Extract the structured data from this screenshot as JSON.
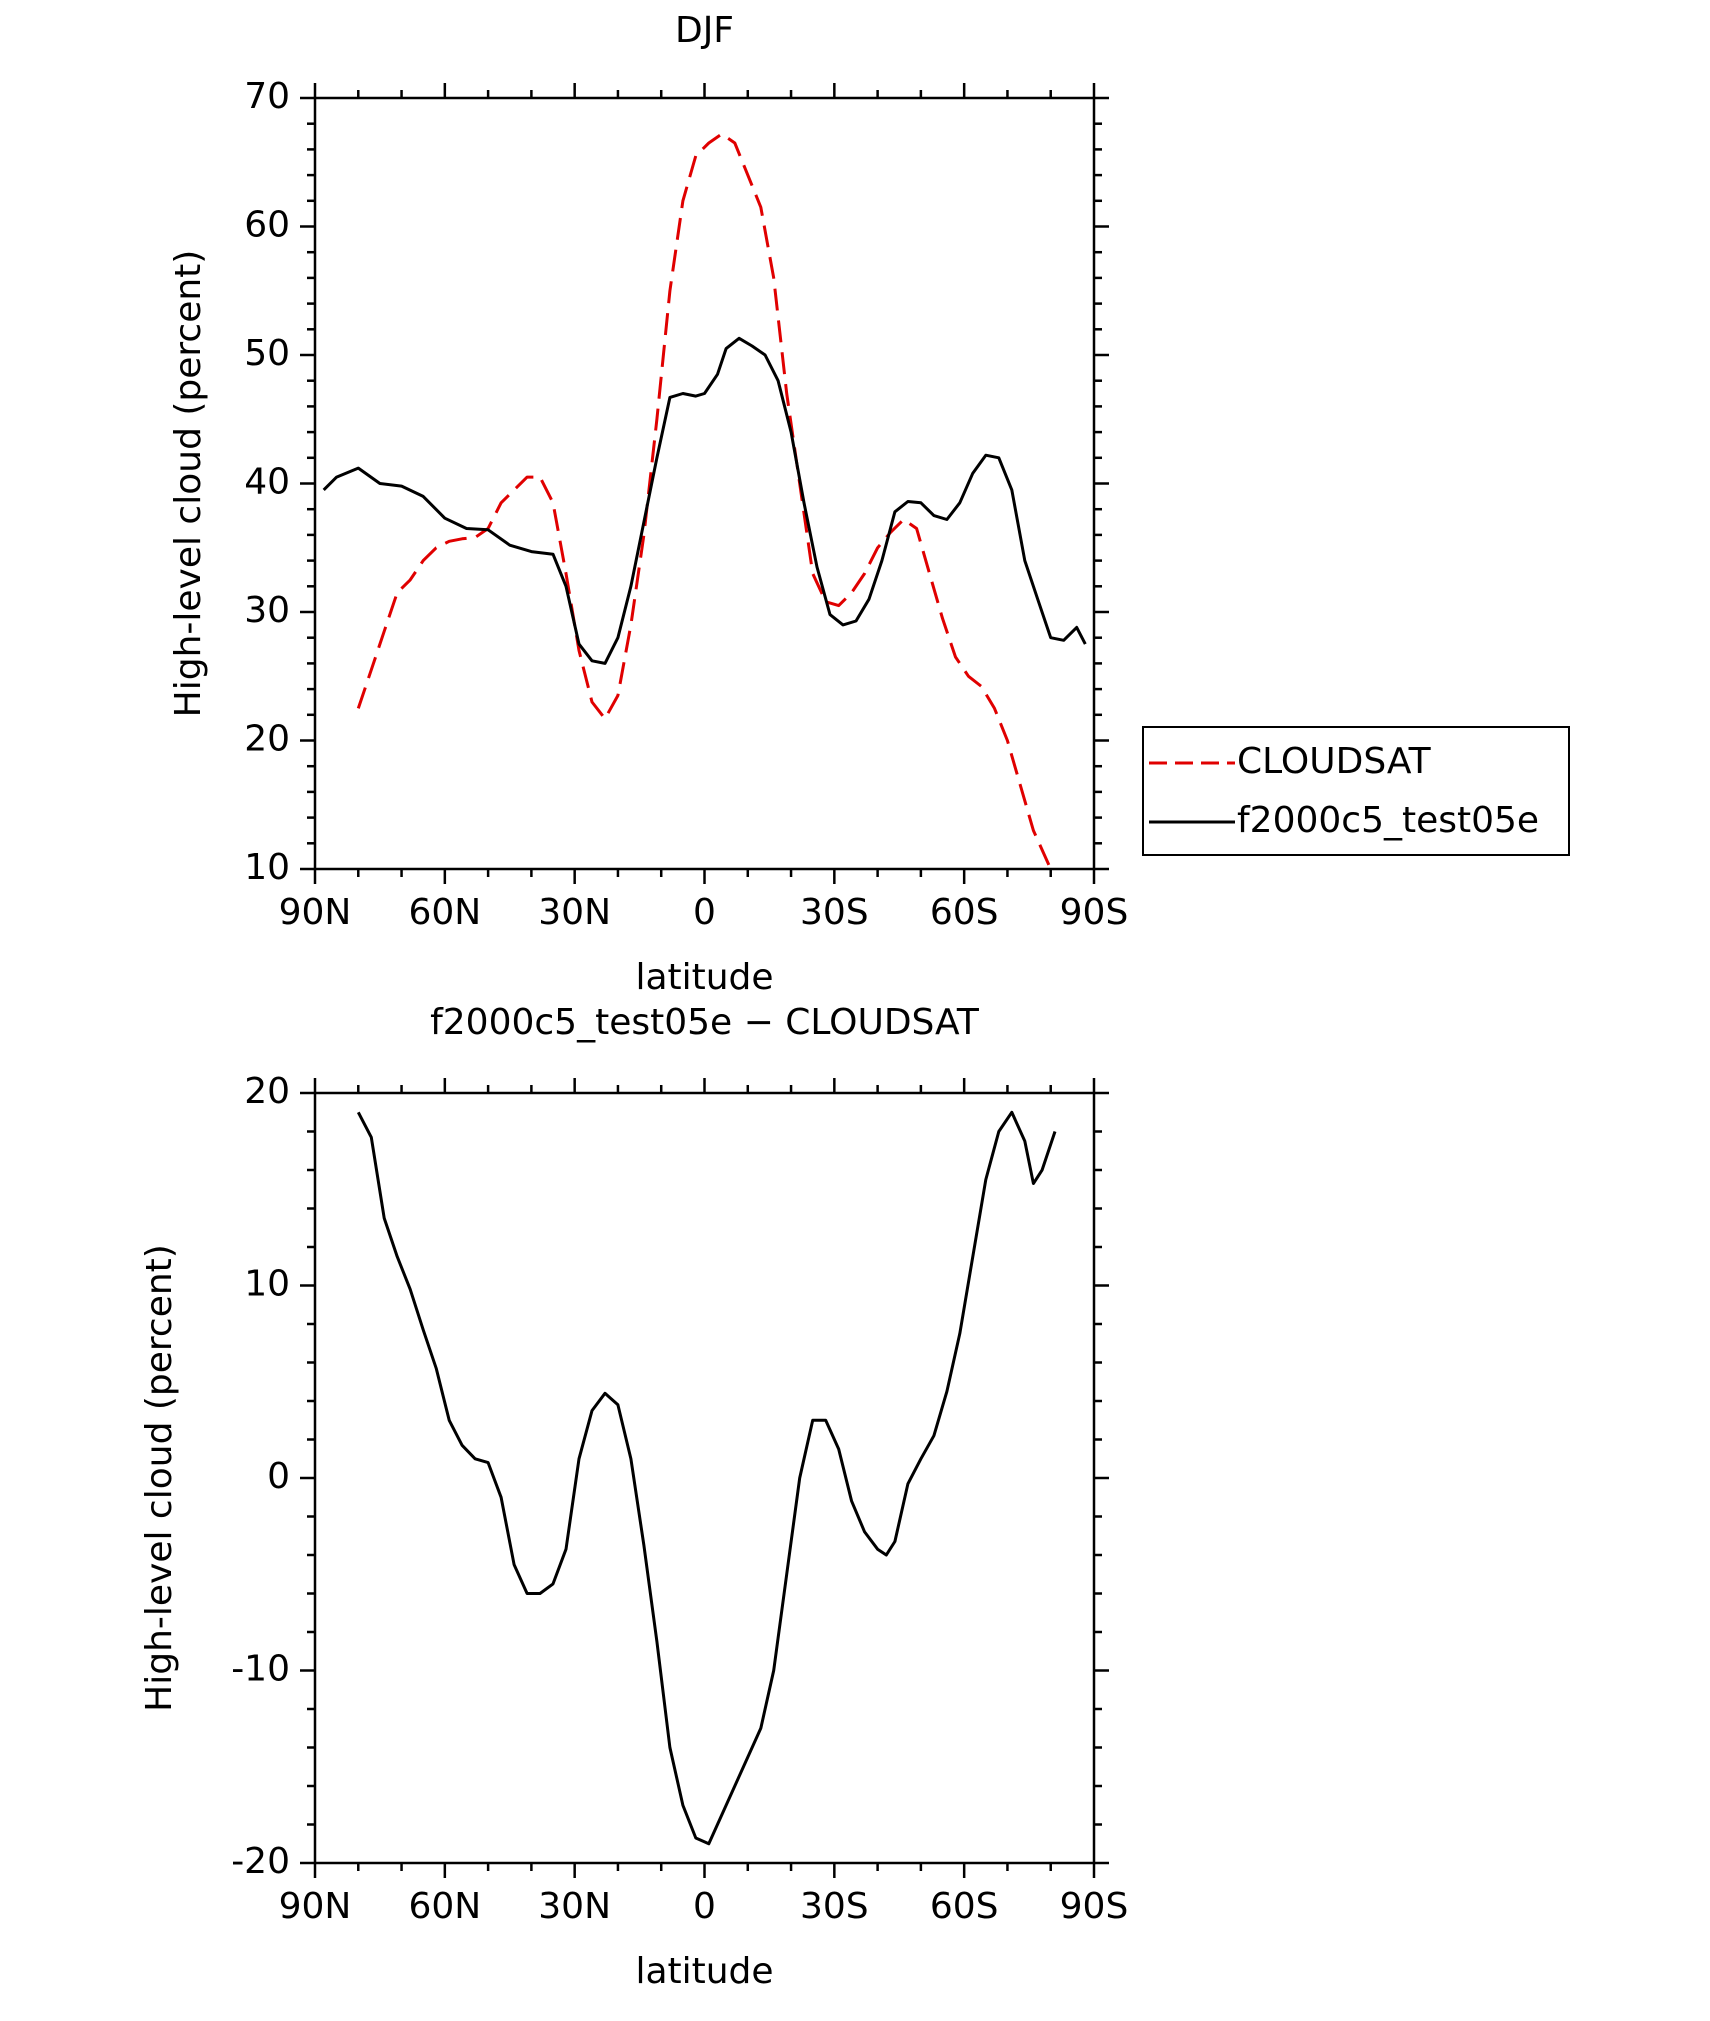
{
  "chart_data": [
    {
      "type": "line",
      "title": "DJF",
      "x_label": "latitude",
      "y_label": "High-level cloud (percent)",
      "xlim": [
        90,
        -90
      ],
      "xticks": [
        {
          "value": 90,
          "label": "90N"
        },
        {
          "value": 60,
          "label": "60N"
        },
        {
          "value": 30,
          "label": "30N"
        },
        0,
        {
          "value": -30,
          "label": "30S"
        },
        {
          "value": -60,
          "label": "60S"
        },
        {
          "value": -90,
          "label": "90S"
        }
      ],
      "xminorticks": [
        80,
        70,
        50,
        40,
        20,
        10,
        -10,
        -20,
        -40,
        -50,
        -70,
        -80
      ],
      "ylim": [
        10,
        70
      ],
      "yticks": [
        10,
        20,
        30,
        40,
        50,
        60,
        70
      ],
      "yminorticks": [
        12,
        14,
        16,
        18,
        22,
        24,
        26,
        28,
        32,
        34,
        36,
        38,
        42,
        44,
        46,
        48,
        52,
        54,
        56,
        58,
        62,
        64,
        66,
        68
      ],
      "legend": "right",
      "series": [
        {
          "name": "CLOUDSAT",
          "color": "#e00000",
          "line_style": "dashed",
          "x": [
            80,
            77,
            74,
            71,
            68,
            65,
            62,
            59,
            56,
            53,
            50,
            47,
            44,
            41,
            38,
            35,
            32,
            29,
            26,
            23,
            20,
            17,
            14,
            11,
            8,
            5,
            2,
            -1,
            -4,
            -7,
            -10,
            -13,
            -16,
            -19,
            -22,
            -25,
            -28,
            -31,
            -34,
            -37,
            -40,
            -43,
            -46,
            -49,
            -52,
            -55,
            -58,
            -61,
            -64,
            -67,
            -70,
            -73,
            -76,
            -80
          ],
          "values": [
            22.5,
            25.5,
            28.5,
            31.5,
            32.5,
            34,
            35,
            35.5,
            35.7,
            35.8,
            36.5,
            38.5,
            39.5,
            40.5,
            40.5,
            38.5,
            33,
            27,
            23,
            21.7,
            23.5,
            29,
            36,
            45,
            55,
            62,
            65.5,
            66.5,
            67.2,
            66.5,
            64,
            61.5,
            56,
            47,
            40,
            33,
            30.8,
            30.5,
            31.5,
            33,
            35,
            36.2,
            37.2,
            36.5,
            33,
            29.5,
            26.5,
            25,
            24.2,
            22.5,
            20,
            16.5,
            13,
            10
          ]
        },
        {
          "name": "f2000c5_test05e",
          "color": "#000000",
          "line_style": "solid",
          "x": [
            88,
            85,
            80,
            75,
            70,
            65,
            60,
            55,
            50,
            45,
            40,
            35,
            32,
            29,
            26,
            23,
            20,
            17,
            14,
            11,
            8,
            5,
            2,
            0,
            -3,
            -5,
            -8,
            -11,
            -14,
            -17,
            -20,
            -23,
            -26,
            -29,
            -32,
            -35,
            -38,
            -41,
            -44,
            -47,
            -50,
            -53,
            -56,
            -59,
            -62,
            -65,
            -68,
            -71,
            -74,
            -77,
            -80,
            -83,
            -86,
            -88
          ],
          "values": [
            39.5,
            40.5,
            41.2,
            40,
            39.8,
            39,
            37.3,
            36.5,
            36.4,
            35.2,
            34.7,
            34.5,
            32,
            27.5,
            26.2,
            26,
            28,
            32,
            37,
            42,
            46.7,
            47,
            46.8,
            47,
            48.5,
            50.5,
            51.3,
            50.7,
            50,
            48,
            44,
            38.5,
            33.5,
            29.8,
            29,
            29.3,
            31,
            34,
            37.8,
            38.6,
            38.5,
            37.5,
            37.2,
            38.5,
            40.8,
            42.2,
            42,
            39.5,
            34,
            31,
            28,
            27.8,
            28.8,
            27.5
          ]
        }
      ]
    },
    {
      "type": "line",
      "title": "f2000c5_test05e − CLOUDSAT",
      "x_label": "latitude",
      "y_label": "High-level cloud (percent)",
      "xlim": [
        90,
        -90
      ],
      "xticks": [
        {
          "value": 90,
          "label": "90N"
        },
        {
          "value": 60,
          "label": "60N"
        },
        {
          "value": 30,
          "label": "30N"
        },
        0,
        {
          "value": -30,
          "label": "30S"
        },
        {
          "value": -60,
          "label": "60S"
        },
        {
          "value": -90,
          "label": "90S"
        }
      ],
      "xminorticks": [
        80,
        70,
        50,
        40,
        20,
        10,
        -10,
        -20,
        -40,
        -50,
        -70,
        -80
      ],
      "ylim": [
        -20,
        20
      ],
      "yticks": [
        -20,
        -10,
        0,
        10,
        20
      ],
      "yminorticks": [
        -18,
        -16,
        -14,
        -12,
        -8,
        -6,
        -4,
        -2,
        2,
        4,
        6,
        8,
        12,
        14,
        16,
        18
      ],
      "series": [
        {
          "color": "#000000",
          "line_style": "solid",
          "x": [
            80,
            77,
            74,
            71,
            68,
            65,
            62,
            59,
            56,
            53,
            50,
            47,
            44,
            41,
            38,
            35,
            32,
            29,
            26,
            23,
            20,
            17,
            14,
            11,
            8,
            5,
            2,
            -1,
            -4,
            -7,
            -10,
            -13,
            -16,
            -19,
            -22,
            -25,
            -28,
            -31,
            -34,
            -37,
            -40,
            -42,
            -44,
            -47,
            -50,
            -53,
            -56,
            -59,
            -62,
            -65,
            -68,
            -71,
            -74,
            -76,
            -78,
            -81
          ],
          "values": [
            19,
            17.7,
            13.5,
            11.5,
            9.8,
            7.7,
            5.7,
            3,
            1.7,
            1,
            0.8,
            -1,
            -4.5,
            -6,
            -6,
            -5.5,
            -3.7,
            1,
            3.5,
            4.4,
            3.8,
            1,
            -3.5,
            -8.5,
            -14,
            -17,
            -18.7,
            -19,
            -17.5,
            -16,
            -14.5,
            -13,
            -10,
            -5,
            0,
            3,
            3,
            1.5,
            -1.2,
            -2.8,
            -3.7,
            -4,
            -3.3,
            -0.3,
            1,
            2.2,
            4.5,
            7.5,
            11.5,
            15.5,
            18,
            19,
            17.5,
            15.3,
            16,
            18
          ]
        }
      ]
    }
  ]
}
